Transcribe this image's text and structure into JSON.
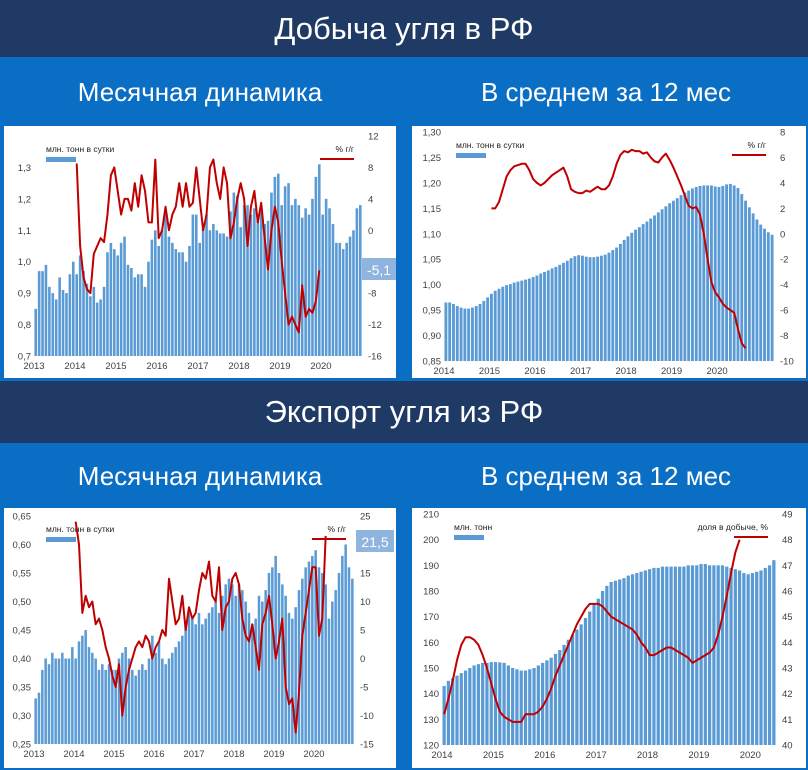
{
  "header1": {
    "title": "Добыча угля в РФ"
  },
  "header2": {
    "title": "Экспорт угля из РФ"
  },
  "subtitles": {
    "monthly": "Месячная динамика",
    "avg12": "В среднем за 12 мес"
  },
  "colors": {
    "bar": "#5b9bd5",
    "line": "#c00000",
    "dark_band": "#1f3a64",
    "blue_band": "#0b6ec5"
  },
  "chart_data": [
    {
      "id": "prod_monthly",
      "type": "bar+line",
      "legend_bar": "млн. тонн в сутки",
      "legend_line": "% г/г",
      "x_labels": [
        "2013",
        "2014",
        "2015",
        "2016",
        "2017",
        "2018",
        "2019",
        "2020"
      ],
      "y_left": {
        "min": 0.7,
        "max": 1.4,
        "ticks": [
          "0,7",
          "0,8",
          "0,9",
          "1,0",
          "1,1",
          "1,2",
          "1,3"
        ]
      },
      "y_right": {
        "min": -16,
        "max": 12,
        "ticks": [
          "-16",
          "-12",
          "-8",
          "-4",
          "0",
          "4",
          "8",
          "12"
        ]
      },
      "callout": "-5,1",
      "bars": [
        0.85,
        0.97,
        0.97,
        0.99,
        0.92,
        0.9,
        0.88,
        0.95,
        0.91,
        0.9,
        0.96,
        1.0,
        0.96,
        1.02,
        0.97,
        0.93,
        0.89,
        0.92,
        0.87,
        0.88,
        0.92,
        1.03,
        1.06,
        1.04,
        1.02,
        1.06,
        1.08,
        0.99,
        0.98,
        0.95,
        0.96,
        0.96,
        0.92,
        1.0,
        1.07,
        1.1,
        1.05,
        1.1,
        1.15,
        1.08,
        1.06,
        1.04,
        1.03,
        1.03,
        1.0,
        1.05,
        1.15,
        1.15,
        1.06,
        1.11,
        1.15,
        1.1,
        1.12,
        1.1,
        1.09,
        1.09,
        1.08,
        1.16,
        1.22,
        1.21,
        1.11,
        1.18,
        1.18,
        1.15,
        1.17,
        1.14,
        1.16,
        1.12,
        1.13,
        1.22,
        1.27,
        1.28,
        1.18,
        1.24,
        1.25,
        1.18,
        1.2,
        1.18,
        1.14,
        1.17,
        1.15,
        1.2,
        1.27,
        1.31,
        1.15,
        1.2,
        1.17,
        1.12,
        1.06,
        1.06,
        1.04,
        1.06,
        1.08,
        1.1,
        1.17,
        1.18
      ],
      "line_start_month": 12,
      "line": [
        8.5,
        -2,
        -6,
        -7.5,
        -8,
        -3,
        -2,
        -1,
        -1.5,
        2,
        7,
        8,
        5,
        2,
        4,
        4,
        2.5,
        6,
        3,
        7,
        5,
        1,
        1,
        9,
        -1,
        0,
        3,
        0,
        2,
        3,
        6,
        3,
        6,
        3,
        3.5,
        8,
        4,
        0,
        2,
        8,
        9,
        6,
        4,
        8,
        6,
        -1,
        1,
        4,
        6,
        4,
        -2,
        3,
        5,
        1,
        3.5,
        -1,
        -5,
        0,
        3,
        1,
        -4,
        -8,
        -12,
        -11,
        -12,
        -13,
        -7,
        -11,
        -10,
        -10.5,
        -9,
        -5.1
      ]
    },
    {
      "id": "prod_12m",
      "type": "bar+line",
      "legend_bar": "млн. тонн в сутки",
      "legend_line": "% г/г",
      "x_labels": [
        "2014",
        "2015",
        "2016",
        "2017",
        "2018",
        "2019",
        "2020"
      ],
      "y_left": {
        "min": 0.85,
        "max": 1.3,
        "ticks": [
          "0,85",
          "0,90",
          "0,95",
          "1,00",
          "1,05",
          "1,10",
          "1,15",
          "1,20",
          "1,25",
          "1,30"
        ]
      },
      "y_right": {
        "min": -10,
        "max": 8,
        "ticks": [
          "-10",
          "-8",
          "-6",
          "-4",
          "-2",
          "0",
          "2",
          "4",
          "6",
          "8"
        ]
      },
      "bars": [
        0.965,
        0.965,
        0.962,
        0.958,
        0.955,
        0.953,
        0.953,
        0.955,
        0.958,
        0.962,
        0.968,
        0.975,
        0.982,
        0.988,
        0.992,
        0.996,
        0.999,
        1.001,
        1.004,
        1.006,
        1.008,
        1.01,
        1.012,
        1.015,
        1.018,
        1.022,
        1.025,
        1.028,
        1.032,
        1.035,
        1.039,
        1.043,
        1.047,
        1.052,
        1.056,
        1.058,
        1.057,
        1.055,
        1.054,
        1.054,
        1.055,
        1.057,
        1.059,
        1.063,
        1.068,
        1.073,
        1.08,
        1.088,
        1.095,
        1.102,
        1.108,
        1.113,
        1.119,
        1.124,
        1.13,
        1.136,
        1.142,
        1.148,
        1.154,
        1.16,
        1.165,
        1.17,
        1.176,
        1.181,
        1.185,
        1.189,
        1.192,
        1.194,
        1.195,
        1.195,
        1.195,
        1.193,
        1.192,
        1.194,
        1.197,
        1.198,
        1.195,
        1.19,
        1.178,
        1.165,
        1.152,
        1.14,
        1.128,
        1.118,
        1.11,
        1.103,
        1.098
      ],
      "line_start_month": 12,
      "line": [
        2,
        2,
        2.5,
        3.5,
        4.5,
        5,
        5.3,
        5.4,
        5.5,
        5.5,
        5,
        4.3,
        4,
        3.8,
        4,
        4.3,
        4.6,
        4.8,
        5,
        5.2,
        4.5,
        3.5,
        3.3,
        3.2,
        3.2,
        3.4,
        3.3,
        3.5,
        3.7,
        3.5,
        3.5,
        3.8,
        4.5,
        5.5,
        6.2,
        6.5,
        6.4,
        6.6,
        6.5,
        6.5,
        6.3,
        6.4,
        6,
        5.7,
        5.6,
        6,
        6.3,
        5.8,
        5.2,
        4.5,
        3.8,
        3,
        2.2,
        2,
        2.1,
        1.5,
        0,
        -2,
        -3.8,
        -4.6,
        -5,
        -5.5,
        -5.8,
        -6,
        -6.2,
        -7.5,
        -8.6,
        -9.0
      ]
    },
    {
      "id": "export_monthly",
      "type": "bar+line",
      "legend_bar": "млн. тонн в сутки",
      "legend_line": "% г/г",
      "x_labels": [
        "2013",
        "2014",
        "2015",
        "2016",
        "2017",
        "2018",
        "2019",
        "2020"
      ],
      "y_left": {
        "min": 0.25,
        "max": 0.65,
        "ticks": [
          "0,25",
          "0,30",
          "0,35",
          "0,40",
          "0,45",
          "0,50",
          "0,55",
          "0,60",
          "0,65"
        ]
      },
      "y_right": {
        "min": -15,
        "max": 25,
        "ticks": [
          "-15",
          "-10",
          "-5",
          "0",
          "5",
          "10",
          "15",
          "20",
          "25"
        ]
      },
      "callout": "21,5",
      "bars": [
        0.33,
        0.34,
        0.38,
        0.4,
        0.39,
        0.41,
        0.4,
        0.4,
        0.41,
        0.4,
        0.4,
        0.42,
        0.4,
        0.43,
        0.44,
        0.45,
        0.42,
        0.41,
        0.4,
        0.38,
        0.39,
        0.38,
        0.39,
        0.38,
        0.38,
        0.4,
        0.41,
        0.42,
        0.4,
        0.38,
        0.37,
        0.38,
        0.39,
        0.38,
        0.4,
        0.44,
        0.41,
        0.43,
        0.4,
        0.39,
        0.4,
        0.41,
        0.42,
        0.43,
        0.44,
        0.46,
        0.48,
        0.47,
        0.46,
        0.48,
        0.46,
        0.47,
        0.48,
        0.49,
        0.5,
        0.48,
        0.51,
        0.53,
        0.54,
        0.53,
        0.51,
        0.53,
        0.52,
        0.5,
        0.48,
        0.46,
        0.47,
        0.51,
        0.5,
        0.52,
        0.55,
        0.56,
        0.58,
        0.55,
        0.53,
        0.51,
        0.48,
        0.47,
        0.49,
        0.52,
        0.54,
        0.56,
        0.57,
        0.58,
        0.59,
        0.56,
        0.55,
        0.53,
        0.47,
        0.5,
        0.52,
        0.55,
        0.58,
        0.6,
        0.56,
        0.54
      ],
      "line_start_month": 12,
      "line": [
        24,
        20,
        8,
        11,
        9,
        10,
        6,
        7,
        5,
        2,
        0,
        -3,
        -5,
        -1,
        -10,
        -5,
        -2,
        0,
        2,
        3,
        2,
        4,
        3,
        0,
        2,
        3,
        5,
        4,
        14,
        10,
        6,
        7,
        11,
        5,
        9,
        7,
        8,
        12,
        15,
        14,
        17,
        11,
        10,
        16,
        5,
        9,
        10,
        14,
        15,
        13,
        7,
        4,
        3,
        6,
        2,
        -2,
        6,
        8,
        11,
        6,
        0,
        3,
        7,
        -5,
        -8,
        -7,
        -13,
        -6,
        4,
        8,
        12,
        16,
        16,
        4,
        7,
        21.5
      ]
    },
    {
      "id": "export_12m",
      "type": "bar+line",
      "legend_bar": "млн. тонн",
      "legend_line": "доля в добыче, %",
      "x_labels": [
        "2014",
        "2015",
        "2016",
        "2017",
        "2018",
        "2019",
        "2020"
      ],
      "y_left": {
        "min": 120,
        "max": 210,
        "ticks": [
          "120",
          "130",
          "140",
          "150",
          "160",
          "170",
          "180",
          "190",
          "200",
          "210"
        ]
      },
      "y_right": {
        "min": 40,
        "max": 49,
        "ticks": [
          "40",
          "41",
          "42",
          "43",
          "44",
          "45",
          "46",
          "47",
          "48",
          "49"
        ]
      },
      "bars": [
        143,
        145,
        146,
        147,
        148,
        149,
        150,
        151,
        151.5,
        152,
        152,
        152.3,
        152.3,
        152.2,
        152,
        151,
        150,
        149.5,
        149,
        149,
        149.5,
        150,
        151,
        152,
        153,
        154,
        155.5,
        157,
        159,
        161,
        163,
        165,
        167,
        169.5,
        172,
        175,
        177,
        180,
        182,
        183.5,
        184,
        184.5,
        185,
        186,
        186.5,
        187,
        187.5,
        188,
        188.5,
        189,
        189,
        189.5,
        189.5,
        189.5,
        189.5,
        189.5,
        189.5,
        190,
        190,
        190,
        190.5,
        190.5,
        190,
        190,
        190,
        190,
        189.5,
        189,
        188.5,
        188,
        187,
        186.5,
        187,
        187.5,
        188,
        189,
        190,
        192
      ],
      "line_start_month": 0,
      "line": [
        41.2,
        41.8,
        42.5,
        43.3,
        43.9,
        44.2,
        44.2,
        44.1,
        43.9,
        43.5,
        43,
        42.4,
        41.8,
        41.3,
        41.1,
        41,
        40.9,
        40.9,
        40.9,
        41.2,
        41.2,
        41.2,
        41.3,
        41.5,
        41.8,
        42.2,
        42.7,
        43.1,
        43.5,
        43.9,
        44.3,
        44.7,
        45,
        45.3,
        45.5,
        45.5,
        45.5,
        45.4,
        45.2,
        45,
        44.9,
        44.8,
        44.7,
        44.6,
        44.5,
        44.3,
        44,
        43.8,
        43.5,
        43.5,
        43.6,
        43.7,
        43.8,
        43.8,
        43.7,
        43.6,
        43.5,
        43.4,
        43.2,
        43.3,
        43.4,
        43.5,
        43.6,
        43.8,
        44.3,
        45,
        45.8,
        46.7,
        47.5,
        48.0
      ]
    }
  ]
}
